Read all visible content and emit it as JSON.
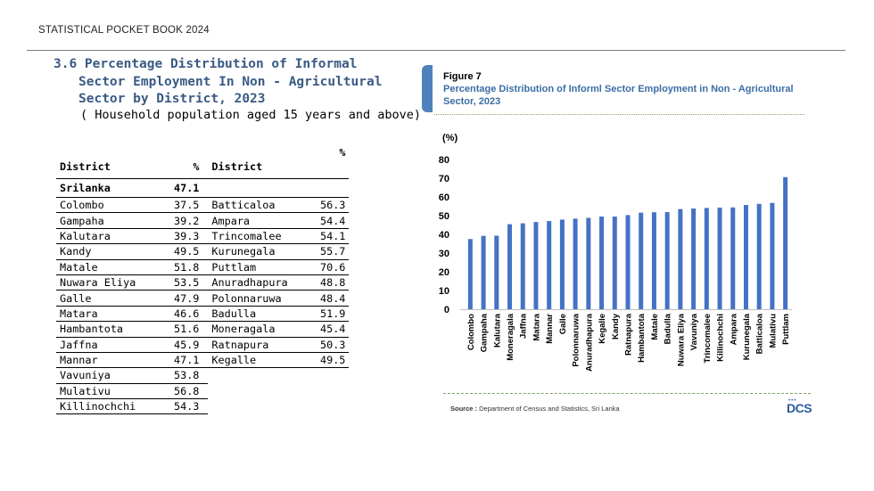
{
  "header": {
    "text": "STATISTICAL POCKET BOOK 2024"
  },
  "section": {
    "title_line1": "3.6 Percentage Distribution of Informal",
    "title_line2": "Sector Employment In Non - Agricultural",
    "title_line3": "Sector by District,  2023",
    "subtitle": "( Household population aged 15 years and above)"
  },
  "table": {
    "headers": {
      "district1": "District",
      "pct1": "%",
      "district2": "District",
      "pct2": "%"
    },
    "srilanka": {
      "label": "Srilanka",
      "value": "47.1"
    },
    "rows": [
      {
        "d1": "Colombo",
        "v1": "37.5",
        "d2": "Batticaloa",
        "v2": "56.3"
      },
      {
        "d1": "Gampaha",
        "v1": "39.2",
        "d2": "Ampara",
        "v2": "54.4"
      },
      {
        "d1": "Kalutara",
        "v1": "39.3",
        "d2": "Trincomalee",
        "v2": "54.1"
      },
      {
        "d1": "Kandy",
        "v1": "49.5",
        "d2": "Kurunegala",
        "v2": "55.7"
      },
      {
        "d1": "Matale",
        "v1": "51.8",
        "d2": "Puttlam",
        "v2": "70.6"
      },
      {
        "d1": "Nuwara Eliya",
        "v1": "53.5",
        "d2": "Anuradhapura",
        "v2": "48.8"
      },
      {
        "d1": "Galle",
        "v1": "47.9",
        "d2": "Polonnaruwa",
        "v2": "48.4"
      },
      {
        "d1": "Matara",
        "v1": "46.6",
        "d2": "Badulla",
        "v2": "51.9"
      },
      {
        "d1": "Hambantota",
        "v1": "51.6",
        "d2": "Moneragala",
        "v2": "45.4"
      },
      {
        "d1": "Jaffna",
        "v1": "45.9",
        "d2": "Ratnapura",
        "v2": "50.3"
      },
      {
        "d1": "Mannar",
        "v1": "47.1",
        "d2": "Kegalle",
        "v2": "49.5"
      },
      {
        "d1": "Vavuniya",
        "v1": "53.8",
        "d2": "",
        "v2": ""
      },
      {
        "d1": "Mulativu",
        "v1": "56.8",
        "d2": "",
        "v2": ""
      },
      {
        "d1": "Killinochchi",
        "v1": "54.3",
        "d2": "",
        "v2": ""
      }
    ]
  },
  "figure": {
    "label": "Figure 7",
    "title": "Percentage Distribution of Informl Sector Employment in  Non - Agricultural Sector, 2023",
    "source_label": "Source :",
    "source_text": "Department of Census and Statistics, Sri Lanka",
    "logo_text": "DCS",
    "logo_dots": "•••"
  },
  "colors": {
    "bar": "#4472c4",
    "title": "#3a5a84",
    "figure_title": "#3a6ea5"
  },
  "chart_data": {
    "type": "bar",
    "ylabel": "(%)",
    "ylim": [
      0,
      80
    ],
    "yticks": [
      0,
      10,
      20,
      30,
      40,
      50,
      60,
      70,
      80
    ],
    "grid": false,
    "legend": "none",
    "categories": [
      "Colombo",
      "Gampaha",
      "Kalutara",
      "Moneragala",
      "Jaffna",
      "Matara",
      "Mannar",
      "Galle",
      "Polonnaruwa",
      "Anuradhapura",
      "Kegalle",
      "Kandy",
      "Ratnapura",
      "Hambantota",
      "Matale",
      "Badulla",
      "Nuwara Eliya",
      "Vavuniya",
      "Trincomalee",
      "Killinochchi",
      "Ampara",
      "Kurunegala",
      "Batticaloa",
      "Mulativu",
      "Puttlam"
    ],
    "values": [
      37.5,
      39.2,
      39.3,
      45.4,
      45.9,
      46.6,
      47.1,
      47.9,
      48.4,
      48.8,
      49.5,
      49.5,
      50.3,
      51.6,
      51.8,
      51.9,
      53.5,
      53.8,
      54.1,
      54.3,
      54.4,
      55.7,
      56.3,
      56.8,
      70.6
    ]
  }
}
